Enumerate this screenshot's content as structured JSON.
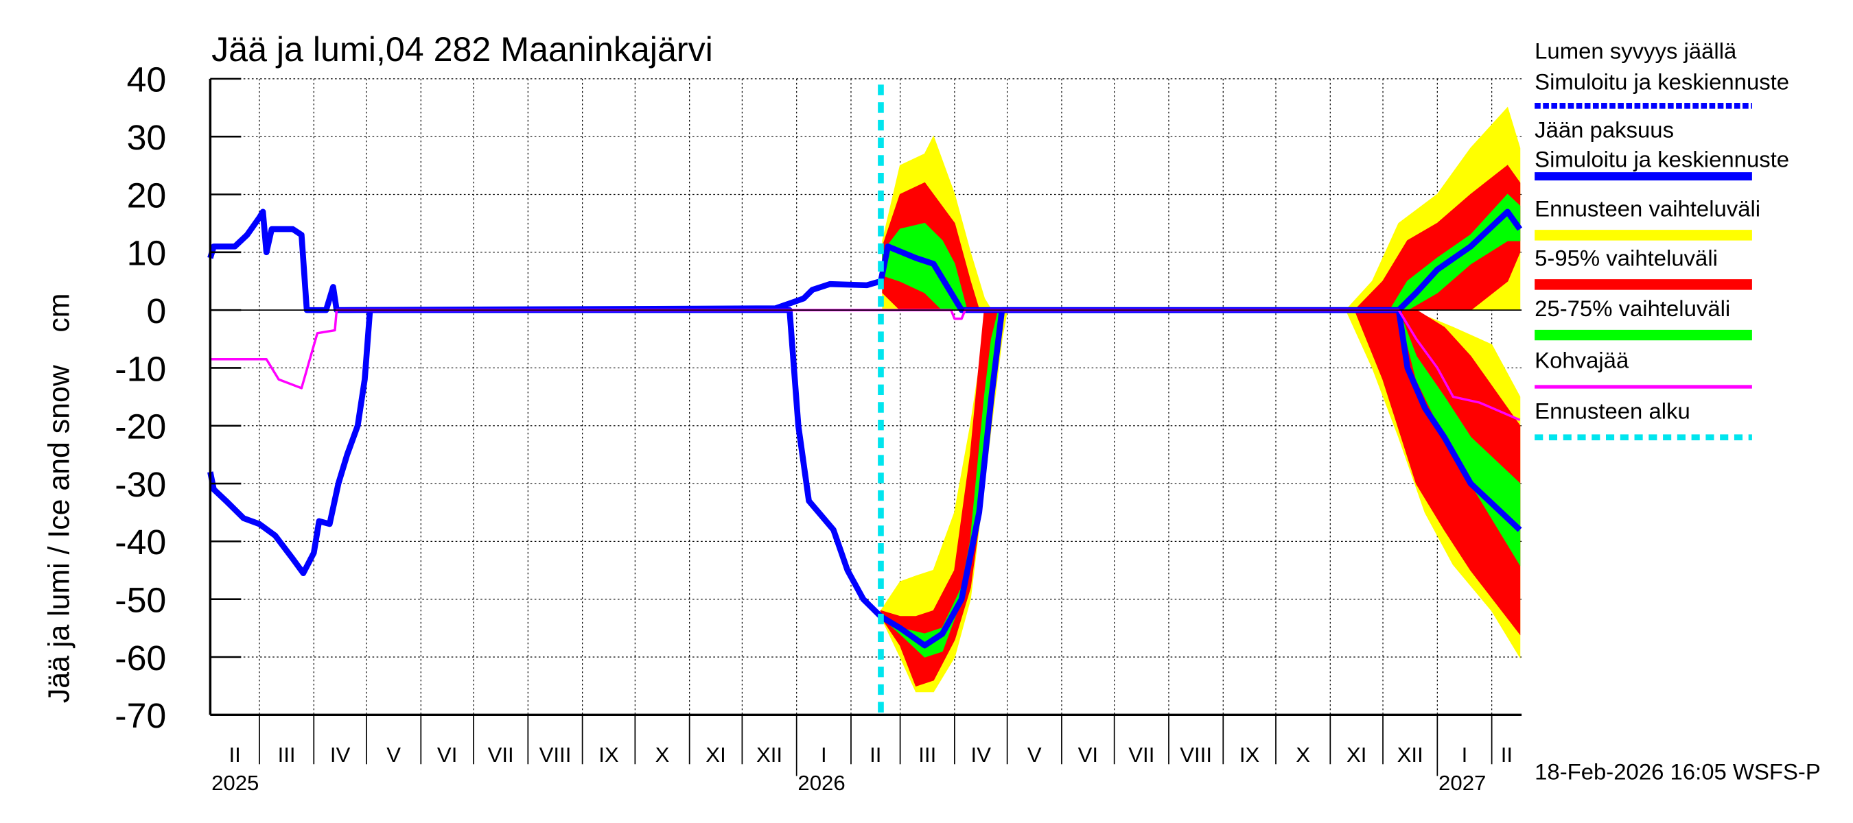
{
  "chart_data": {
    "type": "area",
    "title": "Jää ja lumi,04 282 Maaninkajärvi",
    "ylabel": "Jää ja lumi / Ice and snow    cm",
    "ylim": [
      -70,
      40
    ],
    "yticks": [
      40,
      30,
      20,
      10,
      0,
      -10,
      -20,
      -30,
      -40,
      -50,
      -60,
      -70
    ],
    "xlim": [
      "2025-02-01",
      "2027-02-18"
    ],
    "grid": true,
    "legend_position": "right",
    "timestamp": "18-Feb-2026 16:05 WSFS-P",
    "forecast_start": "2026-02-18",
    "months": [
      {
        "start": "2025-02-01",
        "label": "II"
      },
      {
        "start": "2025-03-01",
        "label": "III"
      },
      {
        "start": "2025-04-01",
        "label": "IV"
      },
      {
        "start": "2025-05-01",
        "label": "V"
      },
      {
        "start": "2025-06-01",
        "label": "VI"
      },
      {
        "start": "2025-07-01",
        "label": "VII"
      },
      {
        "start": "2025-08-01",
        "label": "VIII"
      },
      {
        "start": "2025-09-01",
        "label": "IX"
      },
      {
        "start": "2025-10-01",
        "label": "X"
      },
      {
        "start": "2025-11-01",
        "label": "XI"
      },
      {
        "start": "2025-12-01",
        "label": "XII"
      },
      {
        "start": "2026-01-01",
        "label": "I"
      },
      {
        "start": "2026-02-01",
        "label": "II"
      },
      {
        "start": "2026-03-01",
        "label": "III"
      },
      {
        "start": "2026-04-01",
        "label": "IV"
      },
      {
        "start": "2026-05-01",
        "label": "V"
      },
      {
        "start": "2026-06-01",
        "label": "VI"
      },
      {
        "start": "2026-07-01",
        "label": "VII"
      },
      {
        "start": "2026-08-01",
        "label": "VIII"
      },
      {
        "start": "2026-09-01",
        "label": "IX"
      },
      {
        "start": "2026-10-01",
        "label": "X"
      },
      {
        "start": "2026-11-01",
        "label": "XI"
      },
      {
        "start": "2026-12-01",
        "label": "XII"
      },
      {
        "start": "2027-01-01",
        "label": "I"
      },
      {
        "start": "2027-02-01",
        "label": "II"
      }
    ],
    "years": [
      {
        "date": "2025-02-01",
        "label": "2025"
      },
      {
        "date": "2026-01-01",
        "label": "2026"
      },
      {
        "date": "2027-01-01",
        "label": "2027"
      }
    ],
    "legend": [
      {
        "label1": "Lumen syvyys jäällä",
        "label2": "Simuloitu ja keskiennuste",
        "color": "#0000ff",
        "style": "dashed-thick"
      },
      {
        "label1": "Jään paksuus",
        "label2": "Simuloitu ja keskiennuste",
        "color": "#0000ff",
        "style": "solid-thick"
      },
      {
        "label1": "Ennusteen vaihteluväli",
        "color": "#ffff00",
        "style": "band"
      },
      {
        "label1": "5-95% vaihteluväli",
        "color": "#ff0000",
        "style": "band"
      },
      {
        "label1": "25-75% vaihteluväli",
        "color": "#00ff00",
        "style": "band"
      },
      {
        "label1": "Kohvajää",
        "color": "#ff00ff",
        "style": "thin"
      },
      {
        "label1": "Ennusteen alku",
        "color": "#00e5ee",
        "style": "dotted"
      }
    ],
    "bands": [
      {
        "legend": 2,
        "color": "#ffff00",
        "points": [
          [
            "2026-02-19",
            0,
            12
          ],
          [
            "2026-03-01",
            0,
            25
          ],
          [
            "2026-03-15",
            0,
            27
          ],
          [
            "2026-03-20",
            0,
            30
          ],
          [
            "2026-04-01",
            0,
            20
          ],
          [
            "2026-04-10",
            0,
            10
          ],
          [
            "2026-04-18",
            0,
            2
          ],
          [
            "2026-04-22",
            0,
            0
          ]
        ]
      },
      {
        "legend": 3,
        "color": "#ff0000",
        "points": [
          [
            "2026-02-19",
            3,
            11
          ],
          [
            "2026-03-01",
            0,
            20
          ],
          [
            "2026-03-15",
            0,
            22
          ],
          [
            "2026-04-01",
            0,
            15
          ],
          [
            "2026-04-10",
            0,
            5
          ],
          [
            "2026-04-15",
            0,
            0
          ]
        ]
      },
      {
        "legend": 4,
        "color": "#00ff00",
        "points": [
          [
            "2026-02-19",
            6,
            10
          ],
          [
            "2026-03-01",
            5,
            14
          ],
          [
            "2026-03-15",
            3,
            15
          ],
          [
            "2026-03-25",
            0,
            12
          ],
          [
            "2026-04-01",
            0,
            8
          ],
          [
            "2026-04-08",
            0,
            0
          ]
        ]
      },
      {
        "legend": 2,
        "color": "#ffff00",
        "points": [
          [
            "2026-02-18",
            -53,
            -52
          ],
          [
            "2026-03-01",
            -60,
            -47
          ],
          [
            "2026-03-10",
            -66,
            -46
          ],
          [
            "2026-03-20",
            -66,
            -45
          ],
          [
            "2026-04-01",
            -60,
            -35
          ],
          [
            "2026-04-10",
            -50,
            -20
          ],
          [
            "2026-04-20",
            -25,
            0
          ],
          [
            "2026-04-28",
            -5,
            0
          ],
          [
            "2026-05-01",
            0,
            0
          ]
        ]
      },
      {
        "legend": 3,
        "color": "#ff0000",
        "points": [
          [
            "2026-02-18",
            -53,
            -52
          ],
          [
            "2026-03-01",
            -58,
            -53
          ],
          [
            "2026-03-10",
            -65,
            -53
          ],
          [
            "2026-03-20",
            -64,
            -52
          ],
          [
            "2026-04-01",
            -57,
            -45
          ],
          [
            "2026-04-10",
            -48,
            -25
          ],
          [
            "2026-04-18",
            -30,
            0
          ],
          [
            "2026-04-25",
            -10,
            0
          ],
          [
            "2026-04-28",
            0,
            0
          ]
        ]
      },
      {
        "legend": 4,
        "color": "#00ff00",
        "points": [
          [
            "2026-02-18",
            -53,
            -53
          ],
          [
            "2026-03-01",
            -56,
            -55
          ],
          [
            "2026-03-15",
            -60,
            -56
          ],
          [
            "2026-03-25",
            -59,
            -55
          ],
          [
            "2026-04-05",
            -50,
            -48
          ],
          [
            "2026-04-10",
            -42,
            -40
          ],
          [
            "2026-04-18",
            -25,
            -15
          ],
          [
            "2026-04-22",
            -15,
            -5
          ],
          [
            "2026-04-26",
            0,
            0
          ]
        ]
      },
      {
        "legend": 2,
        "color": "#ffff00",
        "points": [
          [
            "2026-11-10",
            0,
            0
          ],
          [
            "2026-11-25",
            0,
            5
          ],
          [
            "2026-12-10",
            0,
            15
          ],
          [
            "2027-01-01",
            0,
            20
          ],
          [
            "2027-01-20",
            0,
            28
          ],
          [
            "2027-02-10",
            0,
            35
          ],
          [
            "2027-02-17",
            0,
            28
          ]
        ]
      },
      {
        "legend": 3,
        "color": "#ff0000",
        "points": [
          [
            "2026-11-15",
            0,
            0
          ],
          [
            "2026-12-01",
            0,
            5
          ],
          [
            "2026-12-15",
            0,
            12
          ],
          [
            "2027-01-01",
            0,
            15
          ],
          [
            "2027-01-20",
            0,
            20
          ],
          [
            "2027-02-10",
            5,
            25
          ],
          [
            "2027-02-17",
            10,
            22
          ]
        ]
      },
      {
        "legend": 4,
        "color": "#00ff00",
        "points": [
          [
            "2026-12-05",
            0,
            0
          ],
          [
            "2026-12-15",
            0,
            5
          ],
          [
            "2027-01-01",
            3,
            9
          ],
          [
            "2027-01-20",
            8,
            13
          ],
          [
            "2027-02-10",
            12,
            20
          ],
          [
            "2027-02-17",
            12,
            18
          ]
        ]
      },
      {
        "legend": 2,
        "color": "#ffff00",
        "points": [
          [
            "2026-11-10",
            0,
            0
          ],
          [
            "2026-11-25",
            -10,
            0
          ],
          [
            "2026-12-10",
            -22,
            0
          ],
          [
            "2026-12-25",
            -35,
            -1
          ],
          [
            "2027-01-10",
            -44,
            -3
          ],
          [
            "2027-02-01",
            -52,
            -6
          ],
          [
            "2027-02-17",
            -60,
            -15
          ]
        ]
      },
      {
        "legend": 3,
        "color": "#ff0000",
        "points": [
          [
            "2026-11-15",
            0,
            0
          ],
          [
            "2026-12-01",
            -12,
            0
          ],
          [
            "2026-12-20",
            -30,
            0
          ],
          [
            "2027-01-05",
            -38,
            -3
          ],
          [
            "2027-01-20",
            -45,
            -8
          ],
          [
            "2027-02-17",
            -56,
            -20
          ]
        ]
      },
      {
        "legend": 4,
        "color": "#00ff00",
        "points": [
          [
            "2026-12-10",
            0,
            0
          ],
          [
            "2026-12-20",
            -12,
            -8
          ],
          [
            "2027-01-05",
            -22,
            -15
          ],
          [
            "2027-01-20",
            -30,
            -22
          ],
          [
            "2027-02-17",
            -44,
            -30
          ]
        ]
      }
    ],
    "series": [
      {
        "legend": 1,
        "color": "#0000ff",
        "points": [
          [
            "2025-02-01",
            -28
          ],
          [
            "2025-02-03",
            -31
          ],
          [
            "2025-02-10",
            -33
          ],
          [
            "2025-02-20",
            -36
          ],
          [
            "2025-03-01",
            -37
          ],
          [
            "2025-03-10",
            -39
          ],
          [
            "2025-03-20",
            -43
          ],
          [
            "2025-03-26",
            -45.5
          ],
          [
            "2025-04-01",
            -42
          ],
          [
            "2025-04-04",
            -36.5
          ],
          [
            "2025-04-10",
            -37
          ],
          [
            "2025-04-15",
            -30
          ],
          [
            "2025-04-20",
            -25
          ],
          [
            "2025-04-26",
            -20
          ],
          [
            "2025-04-30",
            -12
          ],
          [
            "2025-05-03",
            0
          ],
          [
            "2025-12-28",
            0
          ],
          [
            "2026-01-02",
            -20
          ],
          [
            "2026-01-08",
            -33
          ],
          [
            "2026-01-15",
            -35.5
          ],
          [
            "2026-01-22",
            -38
          ],
          [
            "2026-01-30",
            -45
          ],
          [
            "2026-02-08",
            -50
          ],
          [
            "2026-02-18",
            -53
          ],
          [
            "2026-03-01",
            -55
          ],
          [
            "2026-03-15",
            -58
          ],
          [
            "2026-03-25",
            -56
          ],
          [
            "2026-04-05",
            -50
          ],
          [
            "2026-04-15",
            -35
          ],
          [
            "2026-04-22",
            -15
          ],
          [
            "2026-04-28",
            0
          ],
          [
            "2026-12-10",
            0
          ],
          [
            "2026-12-15",
            -10
          ],
          [
            "2026-12-25",
            -17
          ],
          [
            "2027-01-05",
            -22
          ],
          [
            "2027-01-20",
            -30
          ],
          [
            "2027-02-17",
            -38
          ]
        ]
      },
      {
        "legend": 0,
        "color": "#0000ff",
        "points": [
          [
            "2025-02-01",
            9
          ],
          [
            "2025-02-03",
            11
          ],
          [
            "2025-02-15",
            11
          ],
          [
            "2025-02-22",
            13
          ],
          [
            "2025-03-01",
            16
          ],
          [
            "2025-03-03",
            17
          ],
          [
            "2025-03-05",
            10
          ],
          [
            "2025-03-08",
            14
          ],
          [
            "2025-03-20",
            14
          ],
          [
            "2025-03-25",
            13
          ],
          [
            "2025-03-28",
            0
          ],
          [
            "2025-04-08",
            0
          ],
          [
            "2025-04-12",
            4
          ],
          [
            "2025-04-14",
            0
          ],
          [
            "2025-12-20",
            0.3
          ],
          [
            "2026-01-05",
            2
          ],
          [
            "2026-01-10",
            3.5
          ],
          [
            "2026-01-20",
            4.5
          ],
          [
            "2026-02-10",
            4.3
          ],
          [
            "2026-02-18",
            5
          ],
          [
            "2026-02-22",
            11
          ],
          [
            "2026-03-10",
            9
          ],
          [
            "2026-03-20",
            8
          ],
          [
            "2026-03-28",
            4
          ],
          [
            "2026-04-05",
            0
          ],
          [
            "2026-12-10",
            0
          ],
          [
            "2026-12-20",
            3
          ],
          [
            "2027-01-01",
            7
          ],
          [
            "2027-01-20",
            11
          ],
          [
            "2027-02-10",
            17
          ],
          [
            "2027-02-17",
            14
          ]
        ]
      },
      {
        "legend": 5,
        "color": "#ff00ff",
        "points": [
          [
            "2025-02-01",
            -8.5
          ],
          [
            "2025-03-05",
            -8.5
          ],
          [
            "2025-03-12",
            -12
          ],
          [
            "2025-03-25",
            -13.5
          ],
          [
            "2025-04-03",
            -4
          ],
          [
            "2025-04-13",
            -3.5
          ],
          [
            "2025-04-14",
            0
          ],
          [
            "2026-03-30",
            0
          ],
          [
            "2026-04-01",
            -1.5
          ],
          [
            "2026-04-05",
            -1.5
          ],
          [
            "2026-04-07",
            0
          ],
          [
            "2026-12-10",
            0
          ],
          [
            "2026-12-20",
            -5
          ],
          [
            "2027-01-01",
            -10
          ],
          [
            "2027-01-10",
            -15
          ],
          [
            "2027-01-25",
            -16
          ],
          [
            "2027-02-17",
            -19
          ]
        ]
      }
    ]
  }
}
